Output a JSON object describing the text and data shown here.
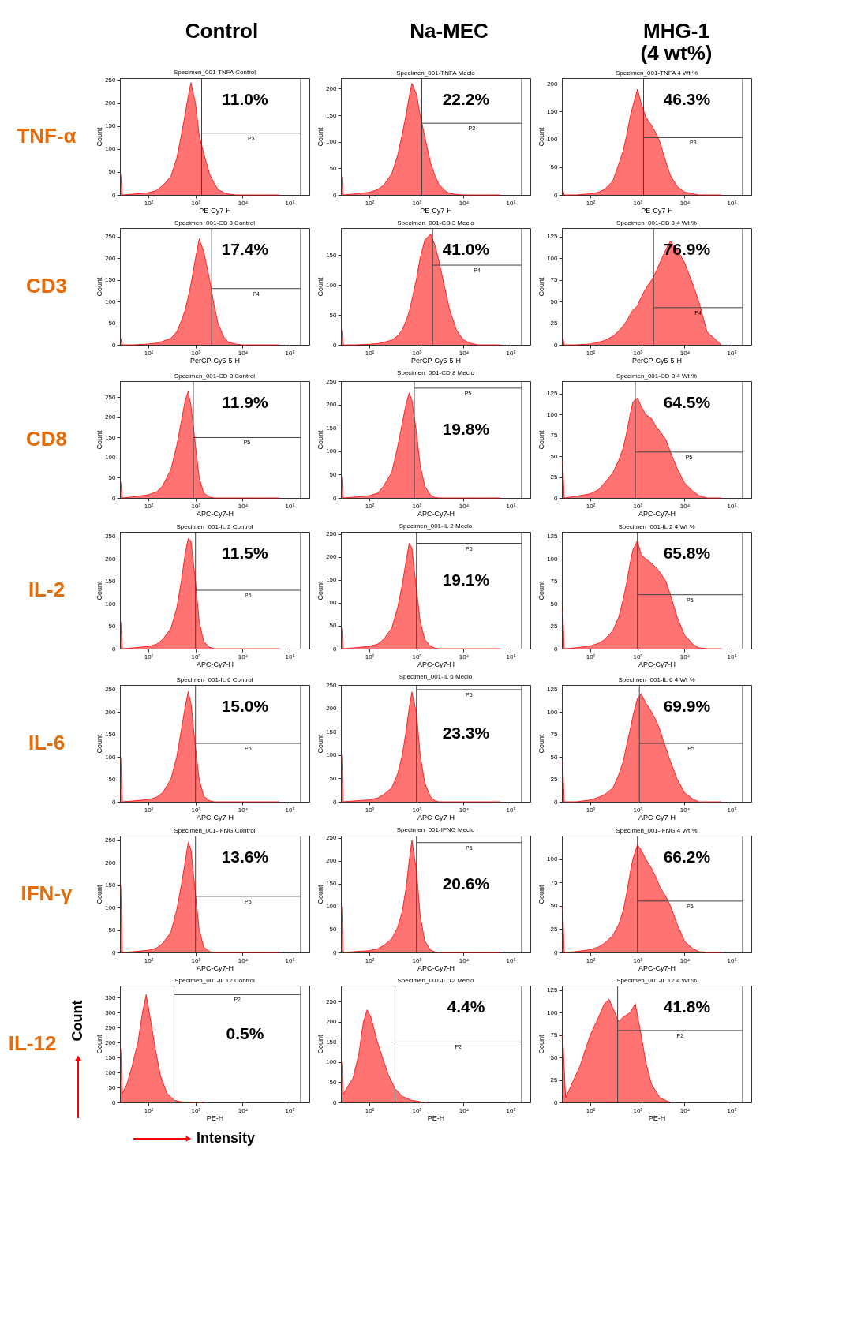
{
  "chart_data": [
    {
      "type": "other",
      "annotations": [
        "Control",
        "Na-MEC",
        "MHG-1\n(4 wt%)"
      ],
      "color": "#000000"
    },
    {
      "type": "other",
      "annotations": [
        "TNF-α"
      ],
      "color": "#e46c0a"
    },
    {
      "type": "area",
      "title": "Specimen_001-TNFA Control",
      "xlabel": "PE-Cy7-H",
      "ylabel": "Count",
      "log": "x",
      "grid": false,
      "x": [
        26,
        28,
        50,
        100,
        150,
        200,
        300,
        400,
        500,
        600,
        700,
        800,
        1000,
        1200,
        1500,
        2000,
        2500,
        3000,
        4000,
        5000,
        7000,
        10000,
        15000,
        20000,
        30000,
        60000
      ],
      "series": [
        {
          "color": "#ff6b6b",
          "values": [
            45,
            0,
            2,
            5,
            10,
            20,
            40,
            80,
            130,
            175,
            215,
            245,
            200,
            130,
            90,
            45,
            25,
            12,
            5,
            2,
            0,
            0,
            0,
            0,
            0,
            0
          ]
        }
      ],
      "xlim": [
        25,
        260000
      ],
      "xticks": [
        {
          "value": 100,
          "label": "10²"
        },
        {
          "value": 1000,
          "label": "10³"
        },
        {
          "value": 10000,
          "label": "10⁴"
        },
        {
          "value": 100000,
          "label": "10⁵"
        }
      ],
      "ylim": [
        0,
        255
      ],
      "yticks": [
        0,
        50,
        100,
        150,
        200,
        250
      ],
      "ref_lines": [
        {
          "axis": "x",
          "value": 1350
        },
        {
          "axis": "x",
          "value": 170000
        },
        {
          "axis": "y",
          "value": 135,
          "label": "P3"
        }
      ],
      "annotations": [
        "11.0%"
      ]
    },
    {
      "type": "area",
      "title": "Specimen_001-TNFA Meclo",
      "xlabel": "PE-Cy7-H",
      "ylabel": "Count",
      "log": "x",
      "grid": false,
      "x": [
        26,
        28,
        50,
        100,
        150,
        200,
        300,
        400,
        500,
        600,
        700,
        800,
        1000,
        1200,
        1500,
        2000,
        2500,
        3000,
        4000,
        5000,
        7000,
        10000,
        15000,
        20000,
        30000,
        60000
      ],
      "series": [
        {
          "color": "#ff6b6b",
          "values": [
            35,
            0,
            2,
            5,
            10,
            18,
            40,
            75,
            115,
            150,
            185,
            210,
            190,
            150,
            110,
            60,
            35,
            20,
            8,
            3,
            1,
            0,
            0,
            0,
            0,
            0
          ]
        }
      ],
      "xlim": [
        25,
        260000
      ],
      "xticks": [
        {
          "value": 100,
          "label": "10²"
        },
        {
          "value": 1000,
          "label": "10³"
        },
        {
          "value": 10000,
          "label": "10⁴"
        },
        {
          "value": 100000,
          "label": "10⁵"
        }
      ],
      "ylim": [
        0,
        220
      ],
      "yticks": [
        0,
        50,
        100,
        150,
        200
      ],
      "ref_lines": [
        {
          "axis": "x",
          "value": 1300
        },
        {
          "axis": "x",
          "value": 170000
        },
        {
          "axis": "y",
          "value": 135,
          "label": "P3"
        }
      ],
      "annotations": [
        "22.2%"
      ]
    },
    {
      "type": "area",
      "title": "Specimen_001-TNFA 4 Wt %",
      "xlabel": "PE-Cy7-H",
      "ylabel": "Count",
      "log": "x",
      "grid": false,
      "x": [
        26,
        28,
        50,
        100,
        150,
        200,
        300,
        400,
        500,
        600,
        700,
        800,
        1000,
        1200,
        1500,
        2000,
        2500,
        3000,
        4000,
        5000,
        7000,
        10000,
        15000,
        20000,
        30000,
        60000
      ],
      "series": [
        {
          "color": "#ff6b6b",
          "values": [
            10,
            0,
            0,
            2,
            5,
            10,
            25,
            55,
            80,
            110,
            140,
            160,
            190,
            165,
            140,
            125,
            110,
            95,
            60,
            35,
            15,
            5,
            2,
            0,
            0,
            0
          ]
        }
      ],
      "xlim": [
        25,
        260000
      ],
      "xticks": [
        {
          "value": 100,
          "label": "10²"
        },
        {
          "value": 1000,
          "label": "10³"
        },
        {
          "value": 10000,
          "label": "10⁴"
        },
        {
          "value": 100000,
          "label": "10⁵"
        }
      ],
      "ylim": [
        0,
        210
      ],
      "yticks": [
        0,
        50,
        100,
        150,
        200
      ],
      "ref_lines": [
        {
          "axis": "x",
          "value": 1350
        },
        {
          "axis": "x",
          "value": 170000
        },
        {
          "axis": "y",
          "value": 103,
          "label": "P3"
        }
      ],
      "annotations": [
        "46.3%"
      ]
    },
    {
      "type": "other",
      "annotations": [
        "CD3"
      ],
      "color": "#e46c0a"
    },
    {
      "type": "area",
      "title": "Specimen_001-CB 3 Control",
      "xlabel": "PerCP-Cy5-5-H",
      "ylabel": "Count",
      "log": "x",
      "grid": false,
      "x": [
        26,
        28,
        50,
        100,
        150,
        200,
        300,
        400,
        500,
        600,
        700,
        800,
        1000,
        1200,
        1500,
        2000,
        2500,
        3000,
        4000,
        5000,
        7000,
        10000,
        15000,
        20000,
        30000,
        60000
      ],
      "series": [
        {
          "color": "#ff6b6b",
          "values": [
            15,
            0,
            0,
            2,
            4,
            8,
            15,
            30,
            55,
            80,
            110,
            140,
            200,
            245,
            215,
            150,
            90,
            50,
            18,
            6,
            2,
            0,
            0,
            0,
            0,
            0
          ]
        }
      ],
      "xlim": [
        25,
        260000
      ],
      "xticks": [
        {
          "value": 100,
          "label": "10²"
        },
        {
          "value": 1000,
          "label": "10³"
        },
        {
          "value": 10000,
          "label": "10⁴"
        },
        {
          "value": 100000,
          "label": "10⁵"
        }
      ],
      "ylim": [
        0,
        270
      ],
      "yticks": [
        0,
        50,
        100,
        150,
        200,
        250
      ],
      "ref_lines": [
        {
          "axis": "x",
          "value": 2200
        },
        {
          "axis": "x",
          "value": 170000
        },
        {
          "axis": "y",
          "value": 130,
          "label": "P4"
        }
      ],
      "annotations": [
        "17.4%"
      ]
    },
    {
      "type": "area",
      "title": "Specimen_001-CB 3 Meclo",
      "xlabel": "PerCP-Cy5-5-H",
      "ylabel": "Count",
      "log": "x",
      "grid": false,
      "x": [
        26,
        28,
        50,
        100,
        150,
        200,
        300,
        400,
        500,
        600,
        700,
        800,
        1000,
        1200,
        1500,
        2000,
        2500,
        3000,
        4000,
        5000,
        7000,
        10000,
        15000,
        20000,
        30000,
        60000
      ],
      "series": [
        {
          "color": "#ff6b6b",
          "values": [
            25,
            0,
            0,
            1,
            2,
            4,
            8,
            15,
            25,
            40,
            55,
            75,
            110,
            145,
            175,
            185,
            165,
            140,
            95,
            60,
            25,
            8,
            2,
            0,
            0,
            0
          ]
        }
      ],
      "xlim": [
        25,
        260000
      ],
      "xticks": [
        {
          "value": 100,
          "label": "10²"
        },
        {
          "value": 1000,
          "label": "10³"
        },
        {
          "value": 10000,
          "label": "10⁴"
        },
        {
          "value": 100000,
          "label": "10⁵"
        }
      ],
      "ylim": [
        0,
        195
      ],
      "yticks": [
        0,
        50,
        100,
        150
      ],
      "ref_lines": [
        {
          "axis": "x",
          "value": 2200
        },
        {
          "axis": "x",
          "value": 170000
        },
        {
          "axis": "y",
          "value": 133,
          "label": "P4"
        }
      ],
      "annotations": [
        "41.0%"
      ]
    },
    {
      "type": "area",
      "title": "Specimen_001-CB 3 4 Wt %",
      "xlabel": "PerCP-Cy5-5-H",
      "ylabel": "Count",
      "log": "x",
      "grid": false,
      "x": [
        26,
        28,
        50,
        100,
        150,
        200,
        300,
        400,
        500,
        600,
        700,
        800,
        1000,
        1200,
        1500,
        2000,
        2500,
        3000,
        4000,
        5000,
        7000,
        10000,
        15000,
        20000,
        30000,
        60000
      ],
      "series": [
        {
          "color": "#ff6b6b",
          "values": [
            10,
            0,
            0,
            1,
            3,
            5,
            10,
            16,
            22,
            28,
            35,
            40,
            45,
            55,
            65,
            75,
            85,
            95,
            110,
            120,
            110,
            95,
            70,
            50,
            15,
            0
          ]
        }
      ],
      "xlim": [
        25,
        260000
      ],
      "xticks": [
        {
          "value": 100,
          "label": "10²"
        },
        {
          "value": 1000,
          "label": "10³"
        },
        {
          "value": 10000,
          "label": "10⁴"
        },
        {
          "value": 100000,
          "label": "10⁵"
        }
      ],
      "ylim": [
        0,
        135
      ],
      "yticks": [
        0,
        25,
        50,
        75,
        100,
        125
      ],
      "ref_lines": [
        {
          "axis": "x",
          "value": 2200
        },
        {
          "axis": "x",
          "value": 170000
        },
        {
          "axis": "y",
          "value": 43,
          "label": "P4"
        }
      ],
      "annotations": [
        "76.9%"
      ]
    },
    {
      "type": "other",
      "annotations": [
        "CD8"
      ],
      "color": "#e46c0a"
    },
    {
      "type": "area",
      "title": "Specimen_001-CD 8 Control",
      "xlabel": "APC-Cy7-H",
      "ylabel": "Count",
      "log": "x",
      "grid": false,
      "x": [
        26,
        28,
        50,
        100,
        150,
        200,
        300,
        400,
        500,
        600,
        700,
        800,
        1000,
        1200,
        1500,
        2000,
        2500,
        3000,
        4000,
        5000,
        7000,
        10000,
        15000,
        20000,
        30000,
        60000
      ],
      "series": [
        {
          "color": "#ff6b6b",
          "values": [
            40,
            0,
            3,
            8,
            15,
            30,
            70,
            130,
            190,
            240,
            265,
            230,
            130,
            50,
            12,
            2,
            0,
            0,
            0,
            0,
            0,
            0,
            0,
            0,
            0,
            0
          ]
        }
      ],
      "xlim": [
        25,
        260000
      ],
      "xticks": [
        {
          "value": 100,
          "label": "10²"
        },
        {
          "value": 1000,
          "label": "10³"
        },
        {
          "value": 10000,
          "label": "10⁴"
        },
        {
          "value": 100000,
          "label": "10⁵"
        }
      ],
      "ylim": [
        0,
        290
      ],
      "yticks": [
        0,
        50,
        100,
        150,
        200,
        250
      ],
      "ref_lines": [
        {
          "axis": "x",
          "value": 900
        },
        {
          "axis": "x",
          "value": 170000
        },
        {
          "axis": "y",
          "value": 150,
          "label": "P5"
        }
      ],
      "annotations": [
        "11.9%"
      ]
    },
    {
      "type": "area",
      "title": "Specimen_001-CD 8 Meclo",
      "xlabel": "APC-Cy7-H",
      "ylabel": "Count",
      "log": "x",
      "grid": false,
      "x": [
        26,
        28,
        50,
        100,
        150,
        200,
        300,
        400,
        500,
        600,
        700,
        800,
        1000,
        1200,
        1500,
        2000,
        2500,
        3000,
        4000,
        5000,
        7000,
        10000,
        15000,
        20000,
        30000,
        60000
      ],
      "series": [
        {
          "color": "#ff6b6b",
          "values": [
            45,
            0,
            2,
            5,
            10,
            25,
            55,
            110,
            160,
            200,
            225,
            210,
            140,
            70,
            25,
            6,
            1,
            0,
            0,
            0,
            0,
            0,
            0,
            0,
            0,
            0
          ]
        }
      ],
      "xlim": [
        25,
        260000
      ],
      "xticks": [
        {
          "value": 100,
          "label": "10²"
        },
        {
          "value": 1000,
          "label": "10³"
        },
        {
          "value": 10000,
          "label": "10⁴"
        },
        {
          "value": 100000,
          "label": "10⁵"
        }
      ],
      "ylim": [
        0,
        250
      ],
      "yticks": [
        0,
        50,
        100,
        150,
        200,
        250
      ],
      "ref_lines": [
        {
          "axis": "x",
          "value": 900
        },
        {
          "axis": "x",
          "value": 170000
        },
        {
          "axis": "y",
          "value": 235,
          "label": "P5"
        }
      ],
      "annotations": [
        "19.8%"
      ]
    },
    {
      "type": "area",
      "title": "Specimen_001-CD 8 4 Wt %",
      "xlabel": "APC-Cy7-H",
      "ylabel": "Count",
      "log": "x",
      "grid": false,
      "x": [
        26,
        28,
        50,
        100,
        150,
        200,
        300,
        400,
        500,
        600,
        700,
        800,
        1000,
        1200,
        1500,
        2000,
        2500,
        3000,
        4000,
        5000,
        7000,
        10000,
        15000,
        20000,
        30000,
        60000
      ],
      "series": [
        {
          "color": "#ff6b6b",
          "values": [
            45,
            0,
            2,
            5,
            10,
            18,
            30,
            45,
            60,
            80,
            100,
            115,
            120,
            110,
            100,
            95,
            85,
            80,
            70,
            55,
            35,
            18,
            8,
            3,
            0,
            0
          ]
        }
      ],
      "xlim": [
        25,
        260000
      ],
      "xticks": [
        {
          "value": 100,
          "label": "10²"
        },
        {
          "value": 1000,
          "label": "10³"
        },
        {
          "value": 10000,
          "label": "10⁴"
        },
        {
          "value": 100000,
          "label": "10⁵"
        }
      ],
      "ylim": [
        0,
        140
      ],
      "yticks": [
        0,
        25,
        50,
        75,
        100,
        125
      ],
      "ref_lines": [
        {
          "axis": "x",
          "value": 900
        },
        {
          "axis": "x",
          "value": 170000
        },
        {
          "axis": "y",
          "value": 55,
          "label": "P5"
        }
      ],
      "annotations": [
        "64.5%"
      ]
    },
    {
      "type": "other",
      "annotations": [
        "IL-2"
      ],
      "color": "#e46c0a"
    },
    {
      "type": "area",
      "title": "Specimen_001-IL 2 Control",
      "xlabel": "APC-Cy7-H",
      "ylabel": "Count",
      "log": "x",
      "grid": false,
      "x": [
        26,
        28,
        50,
        100,
        150,
        200,
        300,
        400,
        500,
        600,
        700,
        800,
        1000,
        1200,
        1500,
        2000,
        2500,
        3000,
        4000,
        5000,
        7000,
        10000,
        15000,
        20000,
        30000,
        60000
      ],
      "series": [
        {
          "color": "#ff6b6b",
          "values": [
            60,
            0,
            2,
            5,
            10,
            20,
            45,
            90,
            150,
            210,
            245,
            240,
            150,
            60,
            15,
            3,
            0,
            0,
            0,
            0,
            0,
            0,
            0,
            0,
            0,
            0
          ]
        }
      ],
      "xlim": [
        25,
        260000
      ],
      "xticks": [
        {
          "value": 100,
          "label": "10²"
        },
        {
          "value": 1000,
          "label": "10³"
        },
        {
          "value": 10000,
          "label": "10⁴"
        },
        {
          "value": 100000,
          "label": "10⁵"
        }
      ],
      "ylim": [
        0,
        260
      ],
      "yticks": [
        0,
        50,
        100,
        150,
        200,
        250
      ],
      "ref_lines": [
        {
          "axis": "x",
          "value": 1000
        },
        {
          "axis": "x",
          "value": 170000
        },
        {
          "axis": "y",
          "value": 130,
          "label": "P5"
        }
      ],
      "annotations": [
        "11.5%"
      ]
    },
    {
      "type": "area",
      "title": "Specimen_001-IL 2 Meclo",
      "xlabel": "APC-Cy7-H",
      "ylabel": "Count",
      "log": "x",
      "grid": false,
      "x": [
        26,
        28,
        50,
        100,
        150,
        200,
        300,
        400,
        500,
        600,
        700,
        800,
        1000,
        1200,
        1500,
        2000,
        2500,
        3000,
        4000,
        5000,
        7000,
        10000,
        15000,
        20000,
        30000,
        60000
      ],
      "series": [
        {
          "color": "#ff6b6b",
          "values": [
            45,
            0,
            2,
            5,
            10,
            20,
            45,
            90,
            140,
            190,
            230,
            220,
            130,
            60,
            20,
            5,
            1,
            0,
            0,
            0,
            0,
            0,
            0,
            0,
            0,
            0
          ]
        }
      ],
      "xlim": [
        25,
        260000
      ],
      "xticks": [
        {
          "value": 100,
          "label": "10²"
        },
        {
          "value": 1000,
          "label": "10³"
        },
        {
          "value": 10000,
          "label": "10⁴"
        },
        {
          "value": 100000,
          "label": "10⁵"
        }
      ],
      "ylim": [
        0,
        255
      ],
      "yticks": [
        0,
        50,
        100,
        150,
        200,
        250
      ],
      "ref_lines": [
        {
          "axis": "x",
          "value": 1000
        },
        {
          "axis": "x",
          "value": 170000
        },
        {
          "axis": "y",
          "value": 230,
          "label": "P5"
        }
      ],
      "annotations": [
        "19.1%"
      ]
    },
    {
      "type": "area",
      "title": "Specimen_001-IL 2 4 Wt %",
      "xlabel": "APC-Cy7-H",
      "ylabel": "Count",
      "log": "x",
      "grid": false,
      "x": [
        26,
        28,
        50,
        100,
        150,
        200,
        300,
        400,
        500,
        600,
        700,
        800,
        1000,
        1200,
        1500,
        2000,
        2500,
        3000,
        4000,
        5000,
        7000,
        10000,
        15000,
        20000,
        30000,
        60000
      ],
      "series": [
        {
          "color": "#ff6b6b",
          "values": [
            45,
            0,
            1,
            3,
            6,
            10,
            20,
            35,
            55,
            75,
            95,
            110,
            120,
            105,
            100,
            95,
            90,
            85,
            75,
            60,
            35,
            15,
            5,
            1,
            0,
            0
          ]
        }
      ],
      "xlim": [
        25,
        260000
      ],
      "xticks": [
        {
          "value": 100,
          "label": "10²"
        },
        {
          "value": 1000,
          "label": "10³"
        },
        {
          "value": 10000,
          "label": "10⁴"
        },
        {
          "value": 100000,
          "label": "10⁵"
        }
      ],
      "ylim": [
        0,
        130
      ],
      "yticks": [
        0,
        25,
        50,
        75,
        100,
        125
      ],
      "ref_lines": [
        {
          "axis": "x",
          "value": 1000
        },
        {
          "axis": "x",
          "value": 170000
        },
        {
          "axis": "y",
          "value": 60,
          "label": "P5"
        }
      ],
      "annotations": [
        "65.8%"
      ]
    },
    {
      "type": "other",
      "annotations": [
        "IL-6"
      ],
      "color": "#e46c0a"
    },
    {
      "type": "area",
      "title": "Specimen_001-IL 6 Control",
      "xlabel": "APC-Cy7-H",
      "ylabel": "Count",
      "log": "x",
      "grid": false,
      "x": [
        26,
        28,
        50,
        100,
        150,
        200,
        300,
        400,
        500,
        600,
        700,
        800,
        1000,
        1200,
        1500,
        2000,
        2500,
        3000,
        4000,
        5000,
        7000,
        10000,
        15000,
        20000,
        30000,
        60000
      ],
      "series": [
        {
          "color": "#ff6b6b",
          "values": [
            100,
            0,
            2,
            5,
            10,
            20,
            50,
            100,
            160,
            210,
            245,
            220,
            120,
            50,
            12,
            2,
            0,
            0,
            0,
            0,
            0,
            0,
            0,
            0,
            0,
            0
          ]
        }
      ],
      "xlim": [
        25,
        260000
      ],
      "xticks": [
        {
          "value": 100,
          "label": "10²"
        },
        {
          "value": 1000,
          "label": "10³"
        },
        {
          "value": 10000,
          "label": "10⁴"
        },
        {
          "value": 100000,
          "label": "10⁵"
        }
      ],
      "ylim": [
        0,
        260
      ],
      "yticks": [
        0,
        50,
        100,
        150,
        200,
        250
      ],
      "ref_lines": [
        {
          "axis": "x",
          "value": 1000
        },
        {
          "axis": "x",
          "value": 170000
        },
        {
          "axis": "y",
          "value": 130,
          "label": "P5"
        }
      ],
      "annotations": [
        "15.0%"
      ]
    },
    {
      "type": "area",
      "title": "Specimen_001-IL 6 Meclo",
      "xlabel": "APC-Cy7-H",
      "ylabel": "Count",
      "log": "x",
      "grid": false,
      "x": [
        26,
        28,
        50,
        100,
        150,
        200,
        300,
        400,
        500,
        600,
        700,
        800,
        1000,
        1200,
        1500,
        2000,
        2500,
        3000,
        4000,
        5000,
        7000,
        10000,
        15000,
        20000,
        30000,
        60000
      ],
      "series": [
        {
          "color": "#ff6b6b",
          "values": [
            100,
            0,
            2,
            4,
            8,
            15,
            30,
            60,
            100,
            150,
            200,
            235,
            190,
            100,
            40,
            10,
            2,
            0,
            0,
            0,
            0,
            0,
            0,
            0,
            0,
            0
          ]
        }
      ],
      "xlim": [
        25,
        260000
      ],
      "xticks": [
        {
          "value": 100,
          "label": "10²"
        },
        {
          "value": 1000,
          "label": "10³"
        },
        {
          "value": 10000,
          "label": "10⁴"
        },
        {
          "value": 100000,
          "label": "10⁵"
        }
      ],
      "ylim": [
        0,
        250
      ],
      "yticks": [
        0,
        50,
        100,
        150,
        200,
        250
      ],
      "ref_lines": [
        {
          "axis": "x",
          "value": 1000
        },
        {
          "axis": "x",
          "value": 170000
        },
        {
          "axis": "y",
          "value": 240,
          "label": "P5"
        }
      ],
      "annotations": [
        "23.3%"
      ]
    },
    {
      "type": "area",
      "title": "Specimen_001-IL 6 4 Wt %",
      "xlabel": "APC-Cy7-H",
      "ylabel": "Count",
      "log": "x",
      "grid": false,
      "x": [
        26,
        28,
        50,
        100,
        150,
        200,
        300,
        400,
        500,
        600,
        700,
        800,
        1000,
        1200,
        1500,
        2000,
        2500,
        3000,
        4000,
        5000,
        7000,
        10000,
        15000,
        20000,
        30000,
        60000
      ],
      "series": [
        {
          "color": "#ff6b6b",
          "values": [
            45,
            0,
            0,
            2,
            5,
            8,
            15,
            30,
            45,
            65,
            80,
            95,
            115,
            120,
            110,
            100,
            90,
            80,
            60,
            45,
            25,
            10,
            3,
            0,
            0,
            0
          ]
        }
      ],
      "xlim": [
        25,
        260000
      ],
      "xticks": [
        {
          "value": 100,
          "label": "10²"
        },
        {
          "value": 1000,
          "label": "10³"
        },
        {
          "value": 10000,
          "label": "10⁴"
        },
        {
          "value": 100000,
          "label": "10⁵"
        }
      ],
      "ylim": [
        0,
        130
      ],
      "yticks": [
        0,
        25,
        50,
        75,
        100,
        125
      ],
      "ref_lines": [
        {
          "axis": "x",
          "value": 1100
        },
        {
          "axis": "x",
          "value": 170000
        },
        {
          "axis": "y",
          "value": 65,
          "label": "P5"
        }
      ],
      "annotations": [
        "69.9%"
      ]
    },
    {
      "type": "other",
      "annotations": [
        "IFN-γ"
      ],
      "color": "#e46c0a"
    },
    {
      "type": "area",
      "title": "Specimen_001-IFNG Control",
      "xlabel": "APC-Cy7-H",
      "ylabel": "Count",
      "log": "x",
      "grid": false,
      "x": [
        26,
        28,
        50,
        100,
        150,
        200,
        300,
        400,
        500,
        600,
        700,
        800,
        1000,
        1200,
        1500,
        2000,
        2500,
        3000,
        4000,
        5000,
        7000,
        10000,
        15000,
        20000,
        30000,
        60000
      ],
      "series": [
        {
          "color": "#ff6b6b",
          "values": [
            150,
            0,
            2,
            5,
            10,
            20,
            45,
            95,
            150,
            200,
            245,
            230,
            130,
            50,
            12,
            2,
            0,
            0,
            0,
            0,
            0,
            0,
            0,
            0,
            0,
            0
          ]
        }
      ],
      "xlim": [
        25,
        260000
      ],
      "xticks": [
        {
          "value": 100,
          "label": "10²"
        },
        {
          "value": 1000,
          "label": "10³"
        },
        {
          "value": 10000,
          "label": "10⁴"
        },
        {
          "value": 100000,
          "label": "10⁵"
        }
      ],
      "ylim": [
        0,
        260
      ],
      "yticks": [
        0,
        50,
        100,
        150,
        200,
        250
      ],
      "ref_lines": [
        {
          "axis": "x",
          "value": 1000
        },
        {
          "axis": "x",
          "value": 170000
        },
        {
          "axis": "y",
          "value": 125,
          "label": "P5"
        }
      ],
      "annotations": [
        "13.6%"
      ]
    },
    {
      "type": "area",
      "title": "Specimen_001-IFNG Meclo",
      "xlabel": "APC-Cy7-H",
      "ylabel": "Count",
      "log": "x",
      "grid": false,
      "x": [
        26,
        28,
        50,
        100,
        150,
        200,
        300,
        400,
        500,
        600,
        700,
        800,
        1000,
        1200,
        1500,
        2000,
        2500,
        3000,
        4000,
        5000,
        7000,
        10000,
        15000,
        20000,
        30000,
        60000
      ],
      "series": [
        {
          "color": "#ff6b6b",
          "values": [
            100,
            0,
            2,
            4,
            8,
            15,
            30,
            55,
            90,
            140,
            200,
            245,
            180,
            80,
            25,
            5,
            1,
            0,
            0,
            0,
            0,
            0,
            0,
            0,
            0,
            0
          ]
        }
      ],
      "xlim": [
        25,
        260000
      ],
      "xticks": [
        {
          "value": 100,
          "label": "10²"
        },
        {
          "value": 1000,
          "label": "10³"
        },
        {
          "value": 10000,
          "label": "10⁴"
        },
        {
          "value": 100000,
          "label": "10⁵"
        }
      ],
      "ylim": [
        0,
        255
      ],
      "yticks": [
        0,
        50,
        100,
        150,
        200,
        250
      ],
      "ref_lines": [
        {
          "axis": "x",
          "value": 1000
        },
        {
          "axis": "x",
          "value": 170000
        },
        {
          "axis": "y",
          "value": 240,
          "label": "P5"
        }
      ],
      "annotations": [
        "20.6%"
      ]
    },
    {
      "type": "area",
      "title": "Specimen_001-IFNG 4 Wt %",
      "xlabel": "APC-Cy7-H",
      "ylabel": "Count",
      "log": "x",
      "grid": false,
      "x": [
        26,
        28,
        50,
        100,
        150,
        200,
        300,
        400,
        500,
        600,
        700,
        800,
        1000,
        1200,
        1500,
        2000,
        2500,
        3000,
        4000,
        5000,
        7000,
        10000,
        15000,
        20000,
        30000,
        60000
      ],
      "series": [
        {
          "color": "#ff6b6b",
          "values": [
            50,
            0,
            1,
            3,
            6,
            10,
            18,
            30,
            45,
            65,
            85,
            100,
            115,
            110,
            100,
            90,
            80,
            70,
            60,
            50,
            30,
            12,
            4,
            1,
            0,
            0
          ]
        }
      ],
      "xlim": [
        25,
        260000
      ],
      "xticks": [
        {
          "value": 100,
          "label": "10²"
        },
        {
          "value": 1000,
          "label": "10³"
        },
        {
          "value": 10000,
          "label": "10⁴"
        },
        {
          "value": 100000,
          "label": "10⁵"
        }
      ],
      "ylim": [
        0,
        125
      ],
      "yticks": [
        0,
        25,
        50,
        75,
        100
      ],
      "ref_lines": [
        {
          "axis": "x",
          "value": 1000
        },
        {
          "axis": "x",
          "value": 170000
        },
        {
          "axis": "y",
          "value": 55,
          "label": "P5"
        }
      ],
      "annotations": [
        "66.2%"
      ]
    },
    {
      "type": "other",
      "annotations": [
        "IL-12"
      ],
      "color": "#e46c0a"
    },
    {
      "type": "other",
      "ylabel": "Count",
      "color": "#ff0000"
    },
    {
      "type": "area",
      "title": "Specimen_001-IL 12 Control",
      "xlabel": "PE-H",
      "ylabel": "Count",
      "log": "x",
      "grid": false,
      "x": [
        26,
        28,
        35,
        45,
        60,
        75,
        90,
        110,
        140,
        180,
        250,
        350,
        500,
        800,
        1500
      ],
      "series": [
        {
          "color": "#ff6b6b",
          "values": [
            180,
            30,
            60,
            120,
            200,
            300,
            360,
            280,
            180,
            90,
            30,
            8,
            2,
            1,
            0
          ]
        }
      ],
      "xlim": [
        25,
        260000
      ],
      "xticks": [
        {
          "value": 100,
          "label": "10²"
        },
        {
          "value": 1000,
          "label": "10³"
        },
        {
          "value": 10000,
          "label": "10⁴"
        },
        {
          "value": 100000,
          "label": "10⁵"
        }
      ],
      "ylim": [
        0,
        390
      ],
      "yticks": [
        0,
        50,
        100,
        150,
        200,
        250,
        300,
        350
      ],
      "ref_lines": [
        {
          "axis": "x",
          "value": 350
        },
        {
          "axis": "x",
          "value": 170000
        },
        {
          "axis": "y",
          "value": 360,
          "label": "P2"
        }
      ],
      "annotations": [
        "0.5%"
      ]
    },
    {
      "type": "area",
      "title": "Specimen_001-IL 12 Meclo",
      "xlabel": "PE-H",
      "ylabel": "Count",
      "log": "x",
      "grid": false,
      "x": [
        26,
        28,
        35,
        45,
        60,
        75,
        90,
        110,
        140,
        180,
        250,
        350,
        500,
        800,
        1500
      ],
      "series": [
        {
          "color": "#ff6b6b",
          "values": [
            100,
            20,
            40,
            60,
            120,
            200,
            230,
            210,
            160,
            120,
            70,
            35,
            15,
            5,
            0
          ]
        }
      ],
      "xlim": [
        25,
        260000
      ],
      "xticks": [
        {
          "value": 100,
          "label": "10²"
        },
        {
          "value": 1000,
          "label": "10³"
        },
        {
          "value": 10000,
          "label": "10⁴"
        },
        {
          "value": 100000,
          "label": "10⁵"
        }
      ],
      "ylim": [
        0,
        290
      ],
      "yticks": [
        0,
        50,
        100,
        150,
        200,
        250
      ],
      "ref_lines": [
        {
          "axis": "x",
          "value": 350
        },
        {
          "axis": "x",
          "value": 170000
        },
        {
          "axis": "y",
          "value": 150,
          "label": "P2"
        }
      ],
      "annotations": [
        "4.4%"
      ]
    },
    {
      "type": "area",
      "title": "Specimen_001-IL 12 4 Wt %",
      "xlabel": "PE-H",
      "ylabel": "Count",
      "log": "x",
      "grid": false,
      "x": [
        26,
        30,
        40,
        60,
        80,
        100,
        150,
        200,
        250,
        300,
        400,
        500,
        700,
        900,
        1200,
        1500,
        2000,
        3000,
        5000
      ],
      "series": [
        {
          "color": "#ff6b6b",
          "values": [
            75,
            5,
            20,
            40,
            60,
            75,
            95,
            110,
            115,
            105,
            90,
            95,
            100,
            110,
            75,
            45,
            20,
            5,
            0
          ]
        }
      ],
      "xlim": [
        25,
        260000
      ],
      "xticks": [
        {
          "value": 100,
          "label": "10²"
        },
        {
          "value": 1000,
          "label": "10³"
        },
        {
          "value": 10000,
          "label": "10⁴"
        },
        {
          "value": 100000,
          "label": "10⁵"
        }
      ],
      "ylim": [
        0,
        130
      ],
      "yticks": [
        0,
        25,
        50,
        75,
        100,
        125
      ],
      "ref_lines": [
        {
          "axis": "x",
          "value": 380
        },
        {
          "axis": "x",
          "value": 170000
        },
        {
          "axis": "y",
          "value": 80,
          "label": "P2"
        }
      ],
      "annotations": [
        "41.8%"
      ]
    },
    {
      "type": "other",
      "xlabel": "Intensity",
      "color": "#ff0000"
    }
  ]
}
